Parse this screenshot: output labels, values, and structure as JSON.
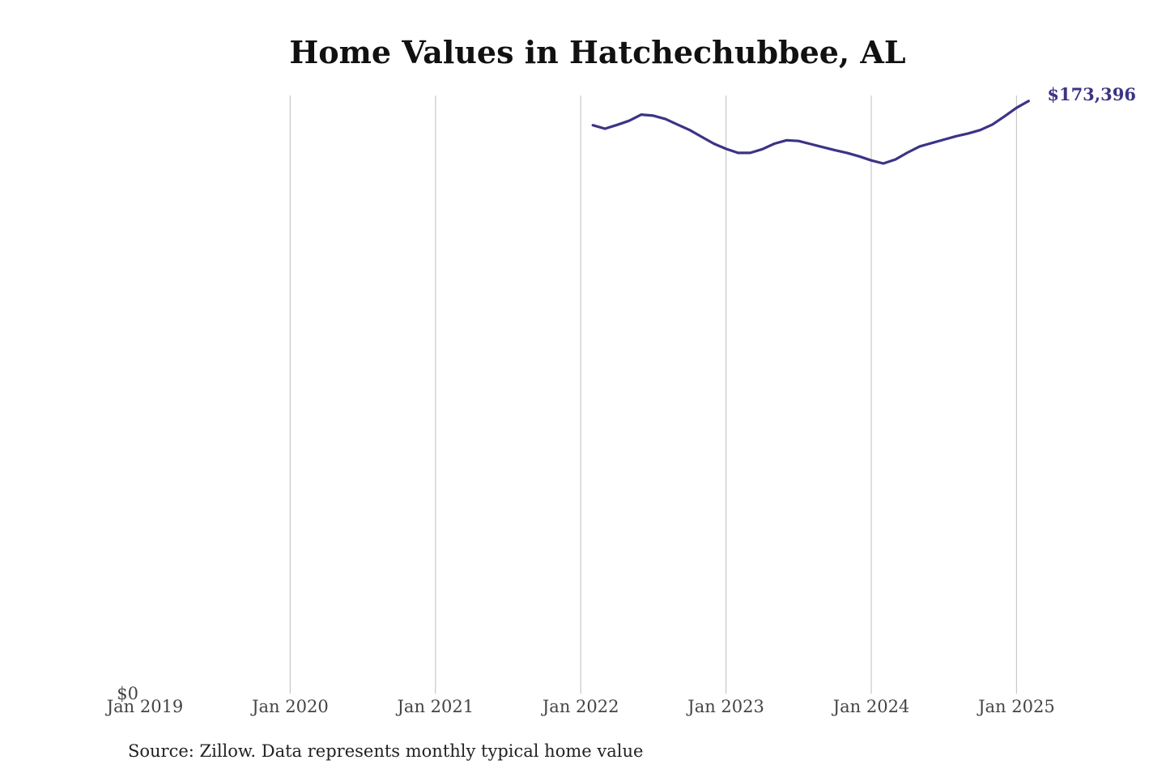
{
  "chart_data": {
    "type": "line",
    "title": "Home Values in Hatchechubbee, AL",
    "source": "Source: Zillow. Data represents monthly typical home value",
    "color": "#3b3486",
    "x_ticks": [
      "Jan 2019",
      "Jan 2020",
      "Jan 2021",
      "Jan 2022",
      "Jan 2023",
      "Jan 2024",
      "Jan 2025"
    ],
    "y_ticks": [
      "$0"
    ],
    "ylim": [
      0,
      175000
    ],
    "grid": "vertical",
    "end_label": "$173,396",
    "series": [
      {
        "x": [
          "2022-02",
          "2022-03",
          "2022-04",
          "2022-05",
          "2022-06",
          "2022-07",
          "2022-08",
          "2022-09",
          "2022-10",
          "2022-11",
          "2022-12",
          "2023-01",
          "2023-02",
          "2023-03",
          "2023-04",
          "2023-05",
          "2023-06",
          "2023-07",
          "2023-08",
          "2023-09",
          "2023-10",
          "2023-11",
          "2023-12",
          "2024-01",
          "2024-02",
          "2024-03",
          "2024-04",
          "2024-05",
          "2024-06",
          "2024-07",
          "2024-08",
          "2024-09",
          "2024-10",
          "2024-11",
          "2024-12",
          "2025-01",
          "2025-02"
        ],
        "y": [
          166300,
          165300,
          166400,
          167600,
          169400,
          169100,
          168100,
          166500,
          164900,
          162900,
          160900,
          159400,
          158200,
          158200,
          159300,
          160900,
          161900,
          161700,
          160800,
          159900,
          159000,
          158200,
          157200,
          156000,
          155100,
          156300,
          158300,
          160100,
          161100,
          162100,
          163100,
          163900,
          164900,
          166500,
          168900,
          171400,
          173396
        ]
      }
    ]
  }
}
